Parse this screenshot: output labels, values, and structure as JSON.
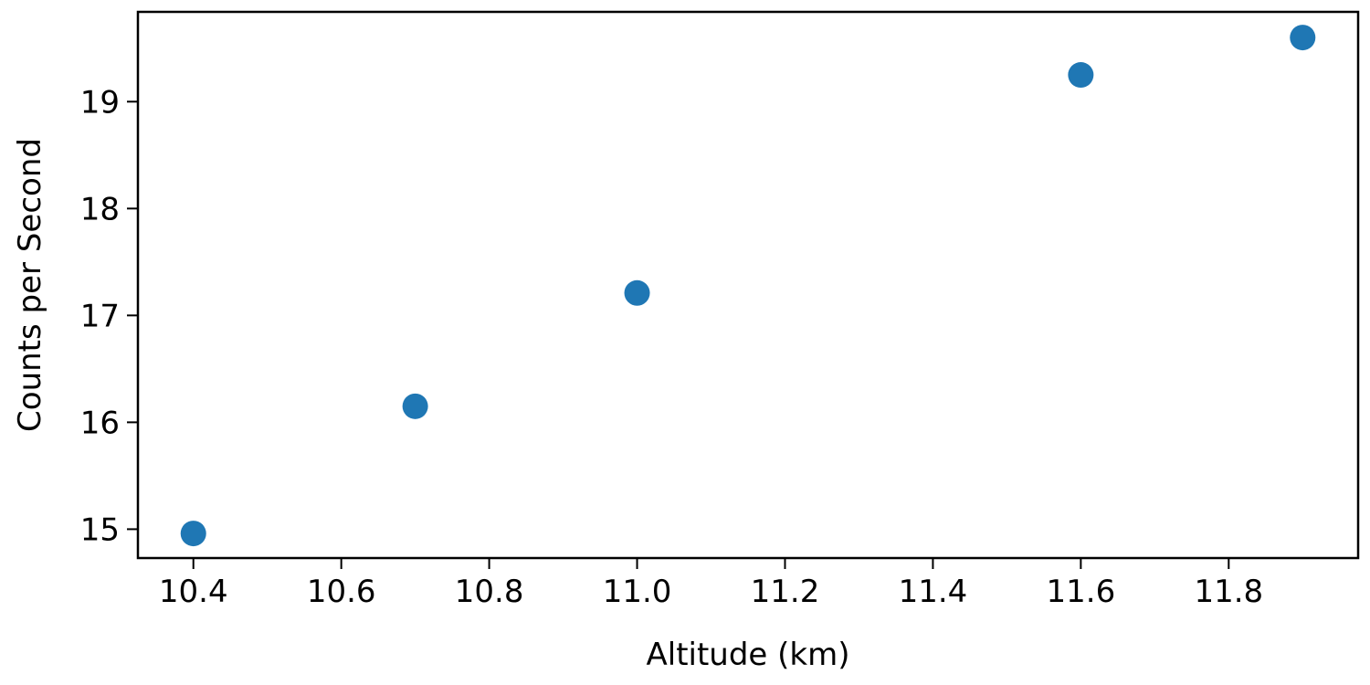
{
  "chart_data": {
    "type": "scatter",
    "xlabel": "Altitude (km)",
    "ylabel": "Counts per Second",
    "xlim": [
      10.325,
      11.975
    ],
    "ylim": [
      14.73,
      19.84
    ],
    "x_ticks": [
      10.4,
      10.6,
      10.8,
      11.0,
      11.2,
      11.4,
      11.6,
      11.8
    ],
    "x_tick_labels": [
      "10.4",
      "10.6",
      "10.8",
      "11.0",
      "11.2",
      "11.4",
      "11.6",
      "11.8"
    ],
    "y_ticks": [
      15,
      16,
      17,
      18,
      19
    ],
    "y_tick_labels": [
      "15",
      "16",
      "17",
      "18",
      "19"
    ],
    "grid": false,
    "series": [
      {
        "color": "#1f77b4",
        "x": [
          10.4,
          10.7,
          11.0,
          11.6,
          11.9
        ],
        "y": [
          14.96,
          16.15,
          17.21,
          19.25,
          19.6
        ]
      }
    ]
  }
}
